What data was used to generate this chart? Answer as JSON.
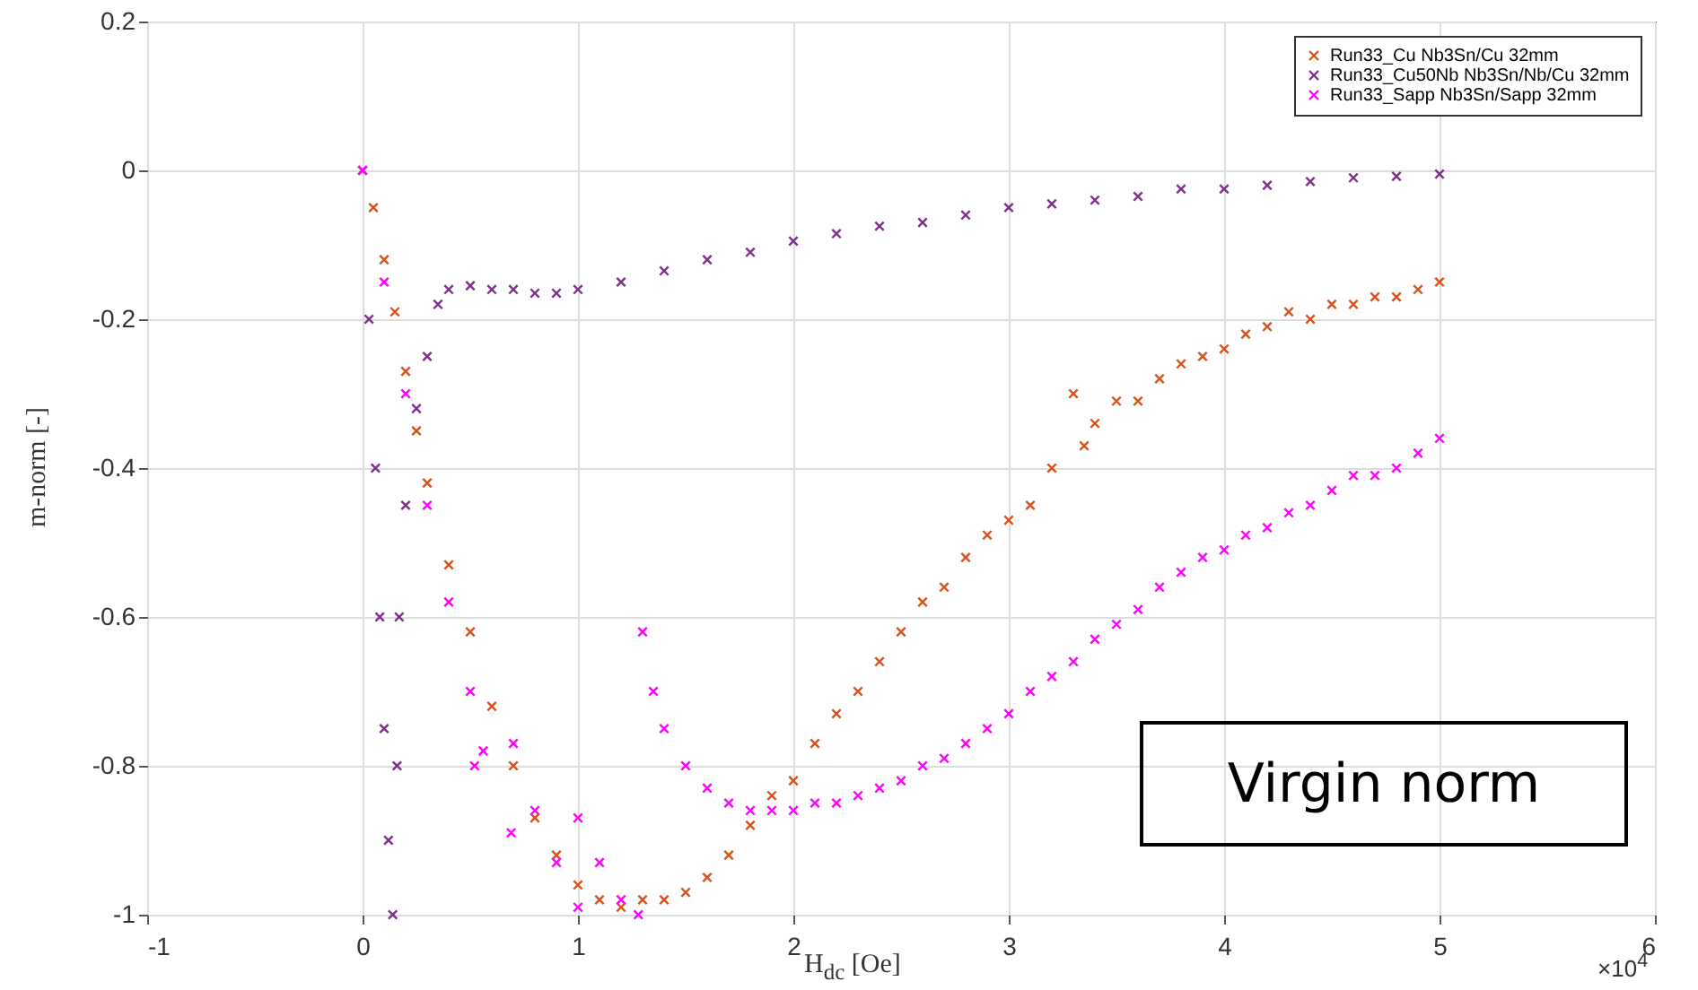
{
  "chart_data": {
    "type": "scatter",
    "xlabel": "H$_{dc}$ [Oe]",
    "ylabel": "m-norm [-]",
    "annotations": [
      "Virgin norm",
      "×10$^{4}$"
    ],
    "xlim": [
      -1,
      6
    ],
    "xticks": [
      -1,
      0,
      1,
      2,
      3,
      4,
      5,
      6
    ],
    "ylim": [
      -1,
      0.2
    ],
    "yticks": [
      -1,
      -0.8,
      -0.6,
      -0.4,
      -0.2,
      0,
      0.2
    ],
    "grid": true,
    "legend": "top right",
    "marker": "cross",
    "series": [
      {
        "name": "Run33_Cu Nb3Sn/Cu 32mm",
        "color": "#d95319",
        "x": [
          0,
          0.05,
          0.1,
          0.15,
          0.2,
          0.25,
          0.3,
          0.4,
          0.5,
          0.6,
          0.7,
          0.8,
          0.9,
          1,
          1.1,
          1.2,
          1.3,
          1.4,
          1.5,
          1.6,
          1.7,
          1.8,
          1.9,
          2,
          2.1,
          2.2,
          2.3,
          2.4,
          2.5,
          2.6,
          2.7,
          2.8,
          2.9,
          3,
          3.1,
          3.2,
          3.3,
          3.35,
          3.4,
          3.5,
          3.6,
          3.7,
          3.8,
          3.9,
          4,
          4.1,
          4.2,
          4.3,
          4.4,
          4.5,
          4.6,
          4.7,
          4.8,
          4.9,
          5
        ],
        "values": [
          0,
          -0.05,
          -0.12,
          -0.19,
          -0.27,
          -0.35,
          -0.42,
          -0.53,
          -0.62,
          -0.72,
          -0.8,
          -0.87,
          -0.92,
          -0.96,
          -0.98,
          -0.99,
          -0.98,
          -0.98,
          -0.97,
          -0.95,
          -0.92,
          -0.88,
          -0.84,
          -0.82,
          -0.77,
          -0.73,
          -0.7,
          -0.66,
          -0.62,
          -0.58,
          -0.56,
          -0.52,
          -0.49,
          -0.47,
          -0.45,
          -0.4,
          -0.3,
          -0.37,
          -0.34,
          -0.31,
          -0.31,
          -0.28,
          -0.26,
          -0.25,
          -0.24,
          -0.22,
          -0.21,
          -0.19,
          -0.2,
          -0.18,
          -0.18,
          -0.17,
          -0.17,
          -0.16,
          -0.15
        ]
      },
      {
        "name": "Run33_Cu50Nb Nb3Sn/Nb/Cu 32mm",
        "color": "#7e2f8e",
        "x": [
          0,
          0.03,
          0.06,
          0.08,
          0.1,
          0.12,
          0.14,
          0.16,
          0.17,
          0.2,
          0.25,
          0.3,
          0.35,
          0.4,
          0.5,
          0.6,
          0.7,
          0.8,
          0.9,
          1,
          1.2,
          1.4,
          1.6,
          1.8,
          2,
          2.2,
          2.4,
          2.6,
          2.8,
          3,
          3.2,
          3.4,
          3.6,
          3.8,
          4,
          4.2,
          4.4,
          4.6,
          4.8,
          5
        ],
        "values": [
          0,
          -0.2,
          -0.4,
          -0.6,
          -0.75,
          -0.9,
          -1,
          -0.8,
          -0.6,
          -0.45,
          -0.32,
          -0.25,
          -0.18,
          -0.16,
          -0.155,
          -0.16,
          -0.16,
          -0.165,
          -0.165,
          -0.16,
          -0.15,
          -0.135,
          -0.12,
          -0.11,
          -0.095,
          -0.085,
          -0.075,
          -0.07,
          -0.06,
          -0.05,
          -0.045,
          -0.04,
          -0.035,
          -0.025,
          -0.025,
          -0.02,
          -0.015,
          -0.01,
          -0.008,
          -0.005
        ]
      },
      {
        "name": "Run33_Sapp Nb3Sn/Sapp 32mm",
        "color": "#ff00ff",
        "x": [
          0,
          0.1,
          0.2,
          0.3,
          0.4,
          0.5,
          0.52,
          0.56,
          0.69,
          0.7,
          0.8,
          0.9,
          1,
          1,
          1.1,
          1.2,
          1.28,
          1.3,
          1.35,
          1.4,
          1.5,
          1.6,
          1.7,
          1.8,
          1.9,
          2,
          2.1,
          2.2,
          2.3,
          2.4,
          2.5,
          2.6,
          2.7,
          2.8,
          2.9,
          3,
          3.1,
          3.2,
          3.3,
          3.4,
          3.5,
          3.6,
          3.7,
          3.8,
          3.9,
          4,
          4.1,
          4.2,
          4.3,
          4.4,
          4.5,
          4.6,
          4.7,
          4.8,
          4.9,
          5
        ],
        "values": [
          0,
          -0.15,
          -0.3,
          -0.45,
          -0.58,
          -0.7,
          -0.8,
          -0.78,
          -0.89,
          -0.77,
          -0.86,
          -0.93,
          -0.99,
          -0.87,
          -0.93,
          -0.98,
          -1,
          -0.62,
          -0.7,
          -0.75,
          -0.8,
          -0.83,
          -0.85,
          -0.86,
          -0.86,
          -0.86,
          -0.85,
          -0.85,
          -0.84,
          -0.83,
          -0.82,
          -0.8,
          -0.79,
          -0.77,
          -0.75,
          -0.73,
          -0.7,
          -0.68,
          -0.66,
          -0.63,
          -0.61,
          -0.59,
          -0.56,
          -0.54,
          -0.52,
          -0.51,
          -0.49,
          -0.48,
          -0.46,
          -0.45,
          -0.43,
          -0.41,
          -0.41,
          -0.4,
          -0.38,
          -0.36
        ]
      }
    ]
  }
}
